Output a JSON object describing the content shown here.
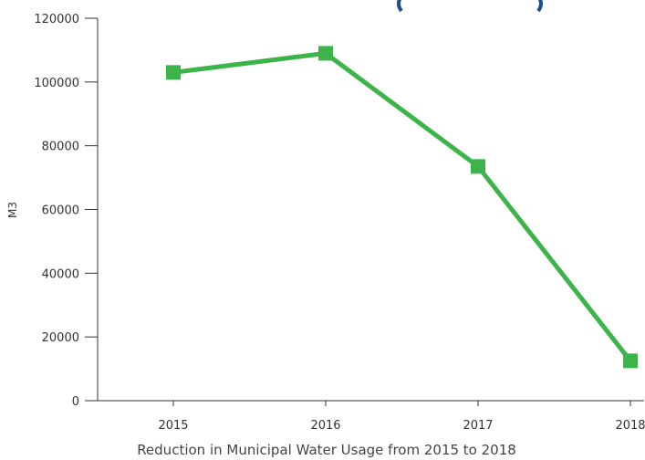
{
  "chart_data": {
    "type": "line",
    "x_categories": [
      "2015",
      "2016",
      "2017",
      "2018"
    ],
    "series": [
      {
        "values": [
          103000,
          109000,
          73500,
          12500
        ],
        "color": "#3cb44a",
        "marker": "square"
      }
    ],
    "ylabel": "M3",
    "caption": "Reduction in Municipal Water Usage from 2015 to 2018",
    "ylim": [
      0,
      120000
    ],
    "yticks": [
      0,
      20000,
      40000,
      60000,
      80000,
      100000,
      120000
    ],
    "ytick_labels": [
      "0",
      "20000",
      "40000",
      "60000",
      "80000",
      "100000",
      "120000"
    ],
    "grid": false,
    "axis_color": "#333333"
  }
}
